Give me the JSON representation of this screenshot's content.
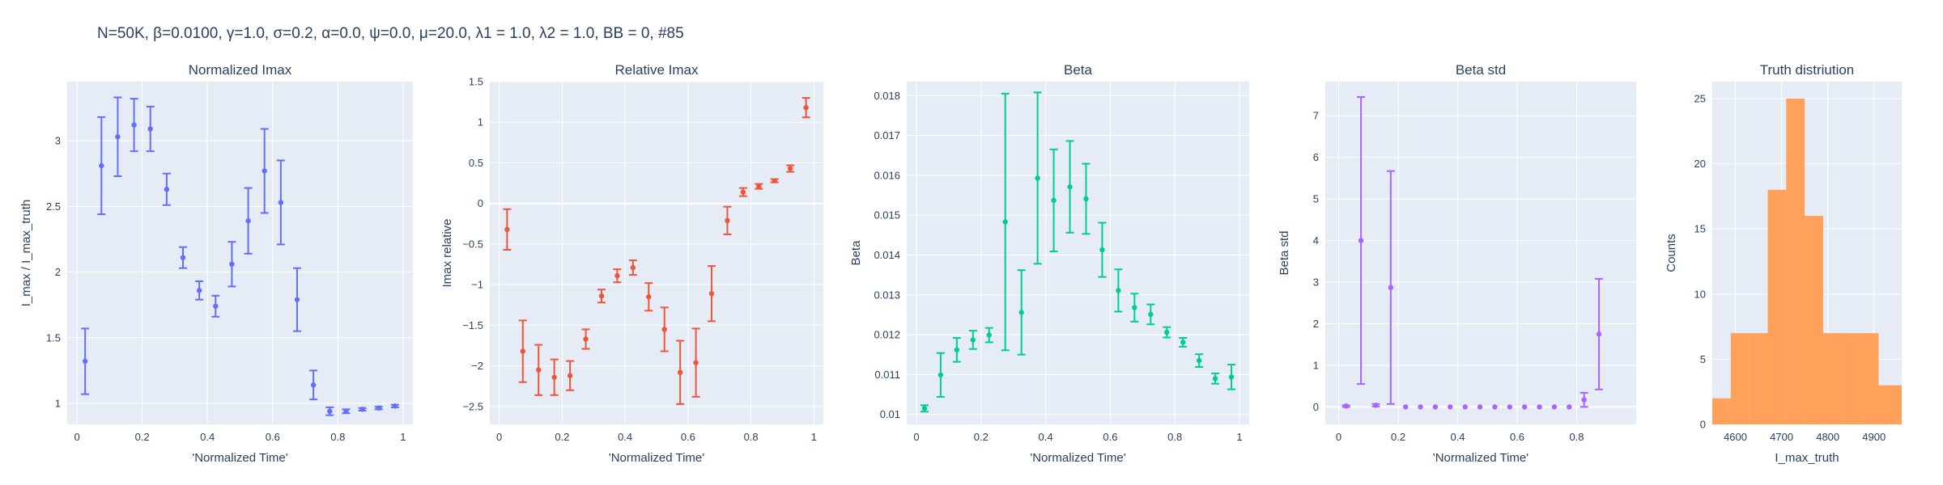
{
  "figure_title": "N=50K, β=0.0100, γ=1.0, σ=0.2,  α=0.0, ψ=0.0, μ=20.0, λ1 = 1.0, λ2 = 1.0, BB = 0, #85",
  "chart_data": [
    {
      "type": "scatter",
      "title": "Normalized Imax",
      "xlabel": "'Normalized Time'",
      "ylabel": "I_max / I_max_truth",
      "color": "#636efa",
      "xlim": [
        -0.03,
        1.03
      ],
      "ylim": [
        0.84,
        3.45
      ],
      "xticks": [
        0,
        0.2,
        0.4,
        0.6,
        0.8,
        1
      ],
      "xtick_labels": [
        "0",
        "0.2",
        "0.4",
        "0.6",
        "0.8",
        "1"
      ],
      "yticks": [
        1,
        1.5,
        2,
        2.5,
        3
      ],
      "ytick_labels": [
        "1",
        "1.5",
        "2",
        "2.5",
        "3"
      ],
      "x": [
        0.025,
        0.075,
        0.125,
        0.175,
        0.225,
        0.275,
        0.325,
        0.375,
        0.425,
        0.475,
        0.525,
        0.575,
        0.625,
        0.675,
        0.725,
        0.775,
        0.825,
        0.875,
        0.925,
        0.975
      ],
      "y": [
        1.32,
        2.81,
        3.03,
        3.12,
        3.09,
        2.63,
        2.11,
        1.86,
        1.74,
        2.06,
        2.39,
        2.77,
        2.53,
        1.79,
        1.14,
        0.94,
        0.94,
        0.955,
        0.965,
        0.98
      ],
      "error": [
        0.25,
        0.37,
        0.3,
        0.2,
        0.17,
        0.12,
        0.08,
        0.07,
        0.08,
        0.17,
        0.25,
        0.32,
        0.32,
        0.24,
        0.11,
        0.03,
        0.015,
        0.01,
        0.01,
        0.01
      ]
    },
    {
      "type": "scatter",
      "title": "Relative Imax",
      "xlabel": "'Normalized Time'",
      "ylabel": "Imax relative",
      "color": "#ef553b",
      "xlim": [
        -0.03,
        1.03
      ],
      "ylim": [
        -2.72,
        1.5
      ],
      "xticks": [
        0,
        0.2,
        0.4,
        0.6,
        0.8,
        1
      ],
      "xtick_labels": [
        "0",
        "0.2",
        "0.4",
        "0.6",
        "0.8",
        "1"
      ],
      "yticks": [
        -2.5,
        -2,
        -1.5,
        -1,
        -0.5,
        0,
        0.5,
        1,
        1.5
      ],
      "ytick_labels": [
        "−2.5",
        "−2",
        "−1.5",
        "−1",
        "−0.5",
        "0",
        "0.5",
        "1",
        "1.5"
      ],
      "x": [
        0.025,
        0.075,
        0.125,
        0.175,
        0.225,
        0.275,
        0.325,
        0.375,
        0.425,
        0.475,
        0.525,
        0.575,
        0.625,
        0.675,
        0.725,
        0.775,
        0.825,
        0.875,
        0.925,
        0.975
      ],
      "y": [
        -0.32,
        -1.82,
        -2.05,
        -2.14,
        -2.12,
        -1.67,
        -1.14,
        -0.89,
        -0.79,
        -1.15,
        -1.55,
        -2.08,
        -1.96,
        -1.11,
        -0.21,
        0.14,
        0.21,
        0.28,
        0.43,
        1.18
      ],
      "error": [
        0.25,
        0.38,
        0.31,
        0.22,
        0.18,
        0.12,
        0.08,
        0.08,
        0.09,
        0.17,
        0.27,
        0.39,
        0.42,
        0.34,
        0.17,
        0.05,
        0.03,
        0.02,
        0.04,
        0.12
      ]
    },
    {
      "type": "scatter",
      "title": "Beta",
      "xlabel": "'Normalized Time'",
      "ylabel": "Beta",
      "color": "#00cc96",
      "xlim": [
        -0.03,
        1.03
      ],
      "ylim": [
        0.00975,
        0.01835
      ],
      "xticks": [
        0,
        0.2,
        0.4,
        0.6,
        0.8,
        1
      ],
      "xtick_labels": [
        "0",
        "0.2",
        "0.4",
        "0.6",
        "0.8",
        "1"
      ],
      "yticks": [
        0.01,
        0.011,
        0.012,
        0.013,
        0.014,
        0.015,
        0.016,
        0.017,
        0.018
      ],
      "ytick_labels": [
        "0.01",
        "0.011",
        "0.012",
        "0.013",
        "0.014",
        "0.015",
        "0.016",
        "0.017",
        "0.018"
      ],
      "x": [
        0.025,
        0.075,
        0.125,
        0.175,
        0.225,
        0.275,
        0.325,
        0.375,
        0.425,
        0.475,
        0.525,
        0.575,
        0.625,
        0.675,
        0.725,
        0.775,
        0.825,
        0.875,
        0.925,
        0.975
      ],
      "y": [
        0.01015,
        0.01099,
        0.01162,
        0.01187,
        0.01199,
        0.01483,
        0.01256,
        0.01593,
        0.01537,
        0.01571,
        0.01541,
        0.01413,
        0.01311,
        0.01268,
        0.01251,
        0.01206,
        0.01181,
        0.01135,
        0.0109,
        0.01094
      ],
      "error": [
        8e-05,
        0.00055,
        0.0003,
        0.00023,
        0.00018,
        0.00322,
        0.00106,
        0.00215,
        0.00128,
        0.00115,
        0.00088,
        0.00068,
        0.00053,
        0.00035,
        0.00025,
        0.00013,
        0.00011,
        0.00016,
        0.00013,
        0.00031
      ]
    },
    {
      "type": "scatter",
      "title": "Beta std",
      "xlabel": "'Normalized Time'",
      "ylabel": "Beta std",
      "color": "#ab63fa",
      "xlim": [
        -0.045,
        1.0
      ],
      "ylim": [
        -0.42,
        7.82
      ],
      "xticks": [
        0,
        0.2,
        0.4,
        0.6,
        0.8
      ],
      "xtick_labels": [
        "0",
        "0.2",
        "0.4",
        "0.6",
        "0.8"
      ],
      "yticks": [
        0,
        1,
        2,
        3,
        4,
        5,
        6,
        7
      ],
      "ytick_labels": [
        "0",
        "1",
        "2",
        "3",
        "4",
        "5",
        "6",
        "7"
      ],
      "x": [
        0.025,
        0.075,
        0.125,
        0.175,
        0.225,
        0.275,
        0.325,
        0.375,
        0.425,
        0.475,
        0.525,
        0.575,
        0.625,
        0.675,
        0.725,
        0.775,
        0.825,
        0.875
      ],
      "y": [
        0.02,
        4.0,
        0.04,
        2.87,
        0.0,
        0.0,
        0.0,
        0.0,
        0.0,
        0.0,
        0.0,
        0.0,
        0.0,
        0.0,
        0.0,
        0.0,
        0.17,
        1.75
      ],
      "error": [
        0.02,
        3.45,
        0.03,
        2.8,
        0.0,
        0.0,
        0.0,
        0.0,
        0.0,
        0.0,
        0.0,
        0.0,
        0.0,
        0.0,
        0.0,
        0.0,
        0.17,
        1.33
      ]
    },
    {
      "type": "bar",
      "title": "Truth distriution",
      "xlabel": "I_max_truth",
      "ylabel": "Counts",
      "color": "#ffa15a",
      "xlim": [
        4550,
        4960
      ],
      "ylim": [
        0,
        26.3
      ],
      "xticks": [
        4600,
        4700,
        4800,
        4900
      ],
      "xtick_labels": [
        "4600",
        "4700",
        "4800",
        "4900"
      ],
      "yticks": [
        0,
        5,
        10,
        15,
        20,
        25
      ],
      "ytick_labels": [
        "0",
        "5",
        "10",
        "15",
        "20",
        "25"
      ],
      "bin_edges": [
        4550,
        4590,
        4630,
        4670,
        4710,
        4750,
        4790,
        4830,
        4870,
        4910,
        4960
      ],
      "values": [
        2,
        7,
        7,
        18,
        25,
        16,
        7,
        7,
        7,
        3
      ]
    }
  ]
}
